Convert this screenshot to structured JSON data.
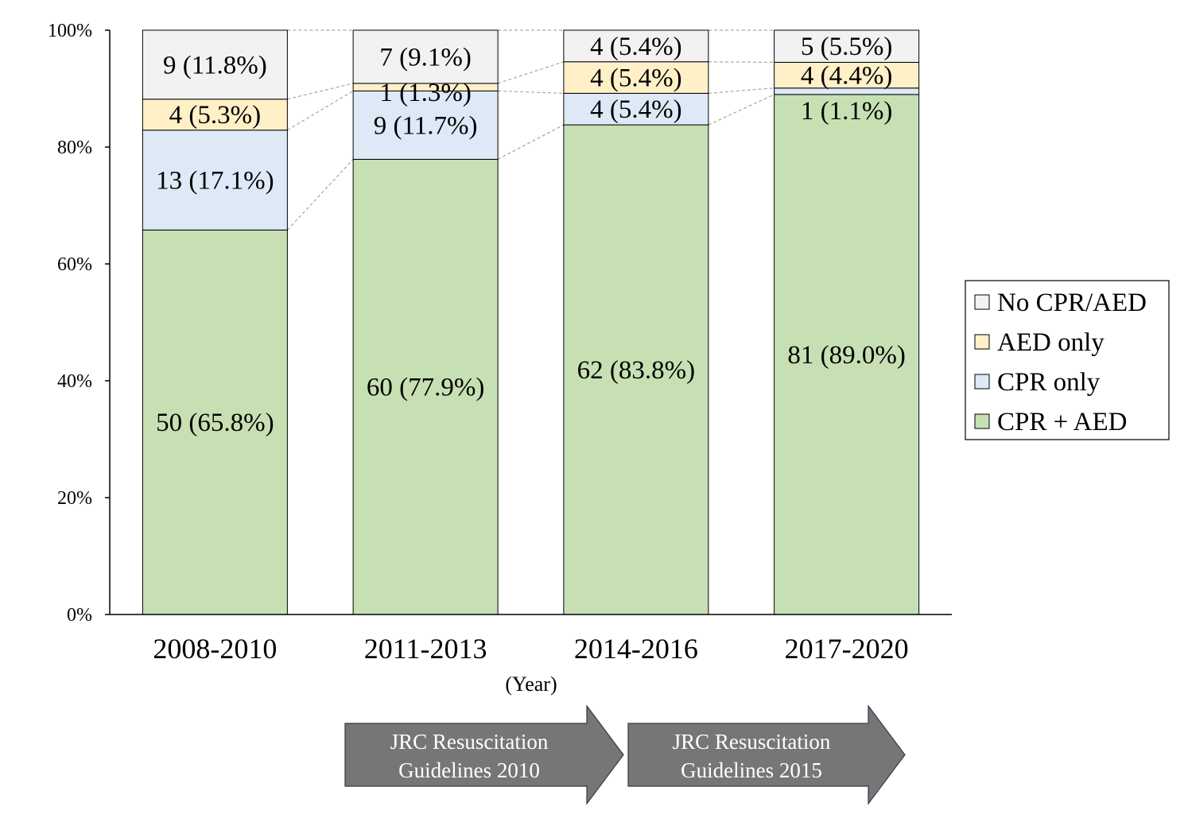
{
  "chart_data": {
    "type": "bar",
    "stacked": true,
    "percent_stacked": true,
    "xlabel": "(Year)",
    "ylabel": "",
    "ylim": [
      0,
      100
    ],
    "y_ticks": [
      "0%",
      "20%",
      "40%",
      "60%",
      "80%",
      "100%"
    ],
    "categories": [
      "2008-2010",
      "2011-2013",
      "2014-2016",
      "2017-2020"
    ],
    "series": [
      {
        "name": "CPR + AED",
        "color": "#c6e0b4",
        "percents": [
          65.8,
          77.9,
          83.8,
          89.0
        ],
        "labels": [
          "50 (65.8%)",
          "60 (77.9%)",
          "62 (83.8%)",
          "81 (89.0%)"
        ]
      },
      {
        "name": "CPR only",
        "color": "#dde9f6",
        "percents": [
          17.1,
          11.7,
          5.4,
          1.1
        ],
        "labels": [
          "13 (17.1%)",
          "9 (11.7%)",
          "4 (5.4%)",
          "1 (1.1%)"
        ]
      },
      {
        "name": "AED only",
        "color": "#fff0c8",
        "percents": [
          5.3,
          1.3,
          5.4,
          4.4
        ],
        "labels": [
          "4 (5.3%)",
          "1 (1.3%)",
          "4 (5.4%)",
          "4 (4.4%)"
        ]
      },
      {
        "name": "No CPR/AED",
        "color": "#f2f2f2",
        "percents": [
          11.8,
          9.1,
          5.4,
          5.5
        ],
        "labels": [
          "9 (11.8%)",
          "7 (9.1%)",
          "4 (5.4%)",
          "5 (5.5%)"
        ]
      }
    ],
    "legend_order": [
      "No CPR/AED",
      "AED only",
      "CPR only",
      "CPR + AED"
    ],
    "legend_position": "right",
    "connector_lines": true,
    "annotations": [
      {
        "line1": "JRC Resuscitation",
        "line2": "Guidelines 2010",
        "color": "#767676"
      },
      {
        "line1": "JRC Resuscitation",
        "line2": "Guidelines 2015",
        "color": "#767676"
      }
    ]
  }
}
